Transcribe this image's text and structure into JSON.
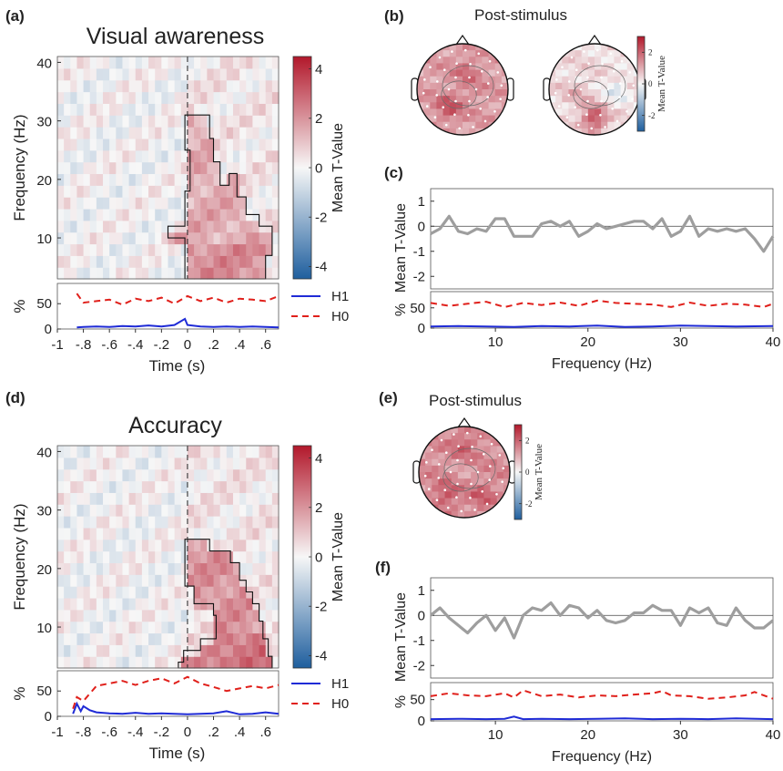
{
  "panel_labels": {
    "a": "(a)",
    "b": "(b)",
    "c": "(c)",
    "d": "(d)",
    "e": "(e)",
    "f": "(f)"
  },
  "chart_data": [
    {
      "id": "a",
      "type": "heatmap",
      "title": "Visual awareness",
      "xlabel": "Time (s)",
      "ylabel": "Frequency (Hz)",
      "colorbar_label": "Mean T-Value",
      "colorbar_ticks": [
        4,
        2,
        0,
        -2,
        -4
      ],
      "colorbar_range": [
        -4.5,
        4.5
      ],
      "xlim": [
        -1,
        0.7
      ],
      "ylim": [
        3,
        41
      ],
      "x_ticks": [
        "-1",
        "-.8",
        "-.6",
        "-.4",
        "-.2",
        "0",
        ".2",
        ".4",
        ".6"
      ],
      "y_ticks": [
        10,
        20,
        30,
        40
      ],
      "colormap": {
        "negative": "#1f5f9e",
        "zero": "#f7f7f7",
        "positive": "#b2182b"
      },
      "stimulus_onset": 0,
      "cluster_outline": [
        [
          -0.02,
          3
        ],
        [
          0.6,
          3
        ],
        [
          0.6,
          7
        ],
        [
          0.65,
          7
        ],
        [
          0.65,
          12
        ],
        [
          0.55,
          12
        ],
        [
          0.55,
          14
        ],
        [
          0.45,
          14
        ],
        [
          0.45,
          17
        ],
        [
          0.38,
          17
        ],
        [
          0.38,
          21
        ],
        [
          0.32,
          21
        ],
        [
          0.32,
          19
        ],
        [
          0.25,
          19
        ],
        [
          0.25,
          23
        ],
        [
          0.2,
          23
        ],
        [
          0.2,
          27
        ],
        [
          0.17,
          27
        ],
        [
          0.17,
          31
        ],
        [
          -0.02,
          31
        ],
        [
          -0.02,
          25
        ],
        [
          0.02,
          25
        ],
        [
          0.02,
          18
        ],
        [
          -0.02,
          18
        ],
        [
          -0.02,
          12
        ],
        [
          -0.15,
          12
        ],
        [
          -0.15,
          10
        ],
        [
          -0.02,
          10
        ]
      ],
      "summary": {
        "pre_stimulus": "mixed weak values (about -1 to 1)",
        "post_stimulus_cluster_mean": 1.5
      },
      "sub_plot": {
        "ylabel": "%",
        "y_ticks": [
          0,
          50
        ],
        "ylim": [
          0,
          90
        ],
        "legend": [
          "H1",
          "H0"
        ],
        "legend_position": "right",
        "series": [
          {
            "name": "H1",
            "color": "#1f2bd6",
            "style": "solid",
            "x": [
              -0.85,
              -0.8,
              -0.7,
              -0.6,
              -0.5,
              -0.4,
              -0.3,
              -0.2,
              -0.1,
              -0.02,
              0,
              0.1,
              0.2,
              0.3,
              0.4,
              0.5,
              0.6,
              0.7
            ],
            "values": [
              3,
              4,
              5,
              4,
              6,
              5,
              7,
              5,
              8,
              20,
              8,
              5,
              4,
              5,
              4,
              5,
              4,
              3
            ]
          },
          {
            "name": "H0",
            "color": "#e0201b",
            "style": "dashed",
            "x": [
              -0.85,
              -0.8,
              -0.7,
              -0.6,
              -0.5,
              -0.4,
              -0.3,
              -0.2,
              -0.1,
              0,
              0.1,
              0.2,
              0.3,
              0.4,
              0.5,
              0.6,
              0.7
            ],
            "values": [
              70,
              52,
              55,
              58,
              48,
              60,
              55,
              62,
              50,
              65,
              55,
              62,
              52,
              60,
              58,
              55,
              65
            ]
          }
        ]
      }
    },
    {
      "id": "b",
      "type": "topomap",
      "title": "Post-stimulus",
      "maps": [
        {
          "overall": 1.2,
          "hot_spots": [
            [
              0.35,
              0.7,
              2.2
            ],
            [
              0.55,
              0.3,
              1.8
            ],
            [
              0.6,
              0.55,
              1.4
            ]
          ]
        },
        {
          "overall": 0.4,
          "hot_spots": [
            [
              0.5,
              0.82,
              2.4
            ],
            [
              0.3,
              0.55,
              0.9
            ],
            [
              0.75,
              0.5,
              -0.3
            ],
            [
              0.62,
              0.7,
              0.3
            ]
          ]
        }
      ],
      "colorbar_label": "Mean T-Value",
      "colorbar_ticks": [
        2,
        0,
        -2
      ],
      "colorbar_range": [
        -3,
        3
      ]
    },
    {
      "id": "c",
      "type": "line",
      "xlabel": "Frequency (Hz)",
      "ylabel": "Mean T-Value",
      "xlim": [
        3,
        40
      ],
      "ylim": [
        -2.5,
        1.5
      ],
      "x_ticks": [
        10,
        20,
        30,
        40
      ],
      "y_ticks": [
        1,
        0,
        -1,
        -2
      ],
      "series": [
        {
          "color": "#9e9e9e",
          "x": [
            3,
            4,
            5,
            6,
            7,
            8,
            9,
            10,
            11,
            12,
            13,
            14,
            15,
            16,
            17,
            18,
            19,
            20,
            21,
            22,
            23,
            24,
            25,
            26,
            27,
            28,
            29,
            30,
            31,
            32,
            33,
            34,
            35,
            36,
            37,
            38,
            39,
            40
          ],
          "values": [
            -0.3,
            -0.1,
            0.4,
            -0.2,
            -0.3,
            -0.1,
            -0.2,
            0.3,
            0.3,
            -0.4,
            -0.4,
            -0.4,
            0.1,
            0.2,
            0,
            0.2,
            -0.4,
            -0.2,
            0.1,
            -0.1,
            0,
            0.1,
            0.2,
            0.2,
            -0.1,
            0.3,
            -0.4,
            -0.2,
            0.4,
            -0.4,
            -0.1,
            -0.2,
            -0.1,
            -0.2,
            -0.1,
            -0.5,
            -1,
            -0.4
          ]
        }
      ],
      "sub_plot": {
        "ylabel": "%",
        "y_ticks": [
          0,
          50
        ],
        "ylim": [
          0,
          90
        ],
        "series": [
          {
            "name": "H1",
            "color": "#1f2bd6",
            "style": "solid",
            "x": [
              3,
              6,
              9,
              12,
              15,
              18,
              21,
              24,
              27,
              30,
              33,
              36,
              40
            ],
            "values": [
              4,
              5,
              4,
              3,
              5,
              4,
              6,
              3,
              4,
              6,
              5,
              4,
              5
            ]
          },
          {
            "name": "H0",
            "color": "#e0201b",
            "style": "dashed",
            "x": [
              3,
              5,
              7,
              9,
              11,
              13,
              15,
              17,
              19,
              21,
              23,
              25,
              27,
              29,
              31,
              33,
              35,
              37,
              39,
              40
            ],
            "values": [
              62,
              55,
              60,
              65,
              52,
              62,
              57,
              63,
              55,
              68,
              62,
              60,
              58,
              52,
              63,
              55,
              60,
              58,
              52,
              60
            ]
          }
        ]
      }
    },
    {
      "id": "d",
      "type": "heatmap",
      "title": "Accuracy",
      "xlabel": "Time (s)",
      "ylabel": "Frequency (Hz)",
      "colorbar_label": "Mean T-Value",
      "colorbar_ticks": [
        4,
        2,
        0,
        -2,
        -4
      ],
      "colorbar_range": [
        -4.5,
        4.5
      ],
      "xlim": [
        -1,
        0.7
      ],
      "ylim": [
        3,
        41
      ],
      "x_ticks": [
        "-1",
        "-.8",
        "-.6",
        "-.4",
        "-.2",
        "0",
        ".2",
        ".4",
        ".6"
      ],
      "y_ticks": [
        10,
        20,
        30,
        40
      ],
      "colormap": {
        "negative": "#1f5f9e",
        "zero": "#f7f7f7",
        "positive": "#b2182b"
      },
      "stimulus_onset": 0,
      "cluster_outline": [
        [
          -0.07,
          3
        ],
        [
          0.65,
          3
        ],
        [
          0.65,
          5
        ],
        [
          0.62,
          5
        ],
        [
          0.62,
          8
        ],
        [
          0.58,
          8
        ],
        [
          0.58,
          11
        ],
        [
          0.55,
          11
        ],
        [
          0.55,
          14
        ],
        [
          0.5,
          14
        ],
        [
          0.5,
          16
        ],
        [
          0.45,
          16
        ],
        [
          0.45,
          18
        ],
        [
          0.4,
          18
        ],
        [
          0.4,
          21
        ],
        [
          0.33,
          21
        ],
        [
          0.33,
          23
        ],
        [
          0.17,
          23
        ],
        [
          0.17,
          25
        ],
        [
          -0.02,
          25
        ],
        [
          -0.02,
          17
        ],
        [
          0.05,
          17
        ],
        [
          0.05,
          14
        ],
        [
          0.2,
          14
        ],
        [
          0.2,
          12
        ],
        [
          0.22,
          12
        ],
        [
          0.22,
          8
        ],
        [
          0.1,
          8
        ],
        [
          0.1,
          6
        ],
        [
          -0.03,
          6
        ],
        [
          -0.03,
          4
        ],
        [
          -0.07,
          4
        ]
      ],
      "summary": {
        "pre_stimulus": "weak mixed values (about -1.5 to 1)",
        "post_stimulus_cluster_mean": 2.0
      },
      "sub_plot": {
        "ylabel": "%",
        "y_ticks": [
          0,
          50
        ],
        "ylim": [
          0,
          90
        ],
        "legend": [
          "H1",
          "H0"
        ],
        "legend_position": "right",
        "series": [
          {
            "name": "H1",
            "color": "#1f2bd6",
            "style": "solid",
            "x": [
              -0.88,
              -0.85,
              -0.82,
              -0.8,
              -0.75,
              -0.7,
              -0.6,
              -0.5,
              -0.4,
              -0.3,
              -0.2,
              -0.1,
              0,
              0.1,
              0.2,
              0.3,
              0.4,
              0.5,
              0.6,
              0.7
            ],
            "values": [
              5,
              25,
              10,
              20,
              12,
              8,
              6,
              5,
              7,
              5,
              6,
              5,
              4,
              5,
              6,
              10,
              4,
              5,
              8,
              5
            ]
          },
          {
            "name": "H0",
            "color": "#e0201b",
            "style": "dashed",
            "x": [
              -0.88,
              -0.85,
              -0.8,
              -0.75,
              -0.7,
              -0.6,
              -0.5,
              -0.4,
              -0.3,
              -0.2,
              -0.1,
              0,
              0.1,
              0.2,
              0.3,
              0.4,
              0.5,
              0.6,
              0.7
            ],
            "values": [
              15,
              38,
              30,
              45,
              60,
              65,
              70,
              62,
              70,
              75,
              65,
              78,
              65,
              58,
              50,
              55,
              60,
              55,
              62
            ]
          }
        ]
      }
    },
    {
      "id": "e",
      "type": "topomap",
      "title": "Post-stimulus",
      "maps": [
        {
          "overall": 1.4,
          "hot_spots": [
            [
              0.5,
              0.2,
              2.0
            ],
            [
              0.3,
              0.75,
              2.2
            ],
            [
              0.7,
              0.75,
              2.0
            ],
            [
              0.5,
              0.5,
              1.2
            ]
          ]
        }
      ],
      "colorbar_label": "Mean T-Value",
      "colorbar_ticks": [
        2,
        0,
        -2
      ],
      "colorbar_range": [
        -3,
        3
      ]
    },
    {
      "id": "f",
      "type": "line",
      "xlabel": "Frequency (Hz)",
      "ylabel": "Mean T-Value",
      "xlim": [
        3,
        40
      ],
      "ylim": [
        -2.5,
        1.5
      ],
      "x_ticks": [
        10,
        20,
        30,
        40
      ],
      "y_ticks": [
        1,
        0,
        -1,
        -2
      ],
      "series": [
        {
          "color": "#9e9e9e",
          "x": [
            3,
            4,
            5,
            6,
            7,
            8,
            9,
            10,
            11,
            12,
            13,
            14,
            15,
            16,
            17,
            18,
            19,
            20,
            21,
            22,
            23,
            24,
            25,
            26,
            27,
            28,
            29,
            30,
            31,
            32,
            33,
            34,
            35,
            36,
            37,
            38,
            39,
            40
          ],
          "values": [
            0,
            0.3,
            -0.1,
            -0.4,
            -0.7,
            -0.3,
            0,
            -0.6,
            -0.1,
            -0.9,
            0,
            0.3,
            0.2,
            0.5,
            0,
            0.4,
            0.3,
            -0.1,
            0.2,
            -0.2,
            -0.3,
            -0.2,
            0.1,
            0.1,
            0.4,
            0.2,
            0.2,
            -0.4,
            0.3,
            0.1,
            0.3,
            -0.3,
            -0.4,
            0.3,
            -0.2,
            -0.5,
            -0.5,
            -0.2
          ]
        }
      ],
      "sub_plot": {
        "ylabel": "%",
        "y_ticks": [
          0,
          50
        ],
        "ylim": [
          0,
          90
        ],
        "series": [
          {
            "name": "H1",
            "color": "#1f2bd6",
            "style": "solid",
            "x": [
              3,
              6,
              9,
              11,
              12,
              13,
              15,
              18,
              21,
              24,
              27,
              30,
              33,
              36,
              40
            ],
            "values": [
              4,
              5,
              4,
              5,
              10,
              4,
              5,
              4,
              5,
              6,
              4,
              5,
              4,
              6,
              4
            ]
          },
          {
            "name": "H0",
            "color": "#e0201b",
            "style": "dashed",
            "x": [
              3,
              5,
              7,
              9,
              11,
              12,
              13,
              15,
              17,
              19,
              21,
              23,
              25,
              27,
              28,
              29,
              31,
              33,
              35,
              37,
              38,
              40
            ],
            "values": [
              58,
              65,
              60,
              58,
              65,
              55,
              72,
              58,
              62,
              55,
              60,
              58,
              62,
              65,
              70,
              60,
              58,
              52,
              55,
              60,
              68,
              52
            ]
          }
        ]
      }
    }
  ]
}
